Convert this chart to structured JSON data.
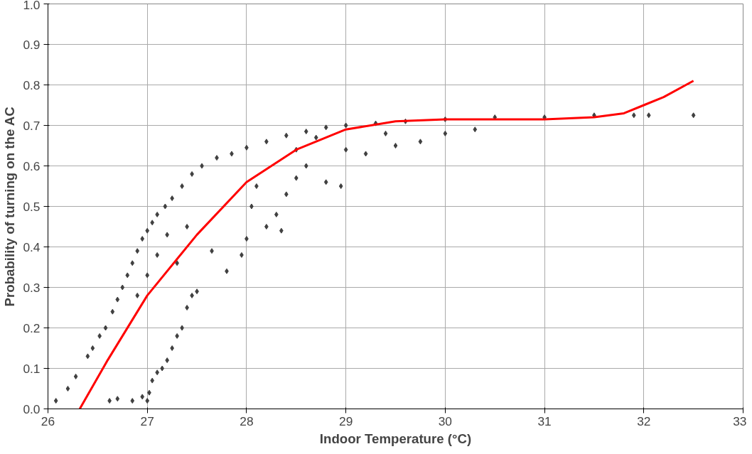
{
  "chart_data": {
    "type": "scatter",
    "xlabel": "Indoor Temperature (°C)",
    "ylabel": "Probability of turning on the AC",
    "xlim": [
      26,
      33
    ],
    "xticks": [
      26,
      27,
      28,
      29,
      30,
      31,
      32,
      33
    ],
    "ylim": [
      0,
      1
    ],
    "yticks": [
      {
        "value": 0,
        "label": "0.0"
      },
      0.1,
      0.2,
      0.3,
      0.4,
      0.5,
      0.6,
      0.7,
      0.8,
      0.9,
      {
        "value": 1,
        "label": "1.0"
      }
    ],
    "grid": true,
    "marker": "diamond",
    "series": [
      {
        "color": "#404040",
        "x": [
          26.08,
          26.2,
          26.28,
          26.4,
          26.45,
          26.52,
          26.58,
          26.65,
          26.7,
          26.75,
          26.8,
          26.85,
          26.9,
          26.95,
          27.0,
          27.05,
          27.1,
          27.18,
          27.25,
          27.35,
          27.45,
          27.55,
          27.7,
          27.85,
          28.0,
          28.2,
          28.4,
          28.6,
          28.8,
          29.0,
          29.3,
          29.6,
          30.0,
          30.5,
          31.0,
          31.5,
          31.9,
          32.05,
          32.5,
          26.62,
          26.7,
          26.85,
          26.95,
          27.0,
          27.02,
          27.05,
          27.1,
          27.15,
          27.2,
          27.25,
          27.3,
          27.35,
          27.4,
          27.45,
          27.5,
          26.9,
          27.0,
          27.1,
          27.2,
          27.3,
          27.4,
          27.65,
          27.8,
          27.95,
          28.0,
          28.05,
          28.1,
          28.2,
          28.3,
          28.35,
          28.4,
          28.5,
          28.6,
          28.8,
          28.95,
          29.0,
          29.2,
          29.5,
          29.75,
          30.0,
          30.3,
          29.4,
          28.7,
          28.5
        ],
        "values": [
          0.02,
          0.05,
          0.08,
          0.13,
          0.15,
          0.18,
          0.2,
          0.24,
          0.27,
          0.3,
          0.33,
          0.36,
          0.39,
          0.42,
          0.44,
          0.46,
          0.48,
          0.5,
          0.52,
          0.55,
          0.58,
          0.6,
          0.62,
          0.63,
          0.645,
          0.66,
          0.675,
          0.685,
          0.695,
          0.7,
          0.705,
          0.71,
          0.715,
          0.72,
          0.72,
          0.725,
          0.725,
          0.725,
          0.725,
          0.02,
          0.025,
          0.02,
          0.03,
          0.02,
          0.04,
          0.07,
          0.09,
          0.1,
          0.12,
          0.15,
          0.18,
          0.2,
          0.25,
          0.28,
          0.29,
          0.28,
          0.33,
          0.38,
          0.43,
          0.36,
          0.45,
          0.39,
          0.34,
          0.38,
          0.42,
          0.5,
          0.55,
          0.45,
          0.48,
          0.44,
          0.53,
          0.57,
          0.6,
          0.56,
          0.55,
          0.64,
          0.63,
          0.65,
          0.66,
          0.68,
          0.69,
          0.68,
          0.67,
          0.64
        ]
      },
      {
        "type": "line",
        "marker": "none",
        "color": "#ff0000",
        "x": [
          26.32,
          26.6,
          27,
          27.5,
          28,
          28.5,
          29,
          29.5,
          30,
          30.5,
          31,
          31.5,
          31.8,
          32,
          32.2,
          32.5
        ],
        "values": [
          0,
          0.12,
          0.28,
          0.43,
          0.56,
          0.64,
          0.69,
          0.71,
          0.715,
          0.715,
          0.715,
          0.72,
          0.73,
          0.75,
          0.77,
          0.81
        ]
      }
    ]
  }
}
